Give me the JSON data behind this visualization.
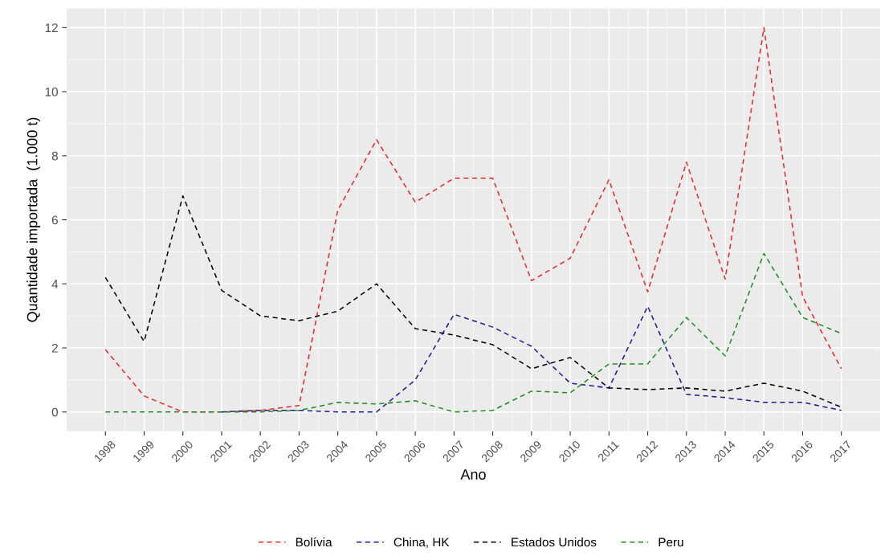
{
  "chart_data": {
    "type": "line",
    "xlabel": "Ano",
    "ylabel": "Quantidade importada  (1.000 t)",
    "categories": [
      "1998",
      "1999",
      "2000",
      "2001",
      "2002",
      "2003",
      "2004",
      "2005",
      "2006",
      "2007",
      "2008",
      "2009",
      "2010",
      "2011",
      "2012",
      "2013",
      "2014",
      "2015",
      "2016",
      "2017"
    ],
    "series": [
      {
        "name": "Bolívia",
        "color": "#e8282b",
        "values": [
          1.95,
          0.5,
          0,
          0,
          0.05,
          0.2,
          6.3,
          8.5,
          6.55,
          7.3,
          7.3,
          4.1,
          4.8,
          7.25,
          3.75,
          7.8,
          4.15,
          12.0,
          3.6,
          1.35
        ]
      },
      {
        "name": "China, HK",
        "color": "#1a1a9c",
        "values": [
          null,
          null,
          null,
          0,
          0.05,
          0.05,
          0,
          0,
          1.0,
          3.05,
          2.65,
          2.05,
          0.9,
          0.75,
          3.3,
          0.55,
          0.45,
          0.3,
          0.3,
          0.05
        ]
      },
      {
        "name": "Estados Unidos",
        "color": "#000000",
        "values": [
          4.2,
          2.2,
          6.75,
          3.8,
          3.0,
          2.85,
          3.15,
          4.0,
          2.6,
          2.4,
          2.1,
          1.35,
          1.7,
          0.75,
          0.7,
          0.75,
          0.65,
          0.9,
          0.65,
          0.15
        ]
      },
      {
        "name": "Peru",
        "color": "#1e8c1e",
        "values": [
          0,
          0,
          0,
          0,
          0,
          0.05,
          0.3,
          0.25,
          0.35,
          0,
          0.05,
          0.65,
          0.6,
          1.5,
          1.5,
          2.95,
          1.75,
          4.95,
          2.95,
          2.45
        ]
      }
    ],
    "ylim": [
      -0.6,
      12.6
    ],
    "yticks": [
      0,
      2,
      4,
      6,
      8,
      10,
      12
    ],
    "grid": true,
    "legend": "bottom",
    "line_style": "dashed",
    "marker": "none"
  }
}
